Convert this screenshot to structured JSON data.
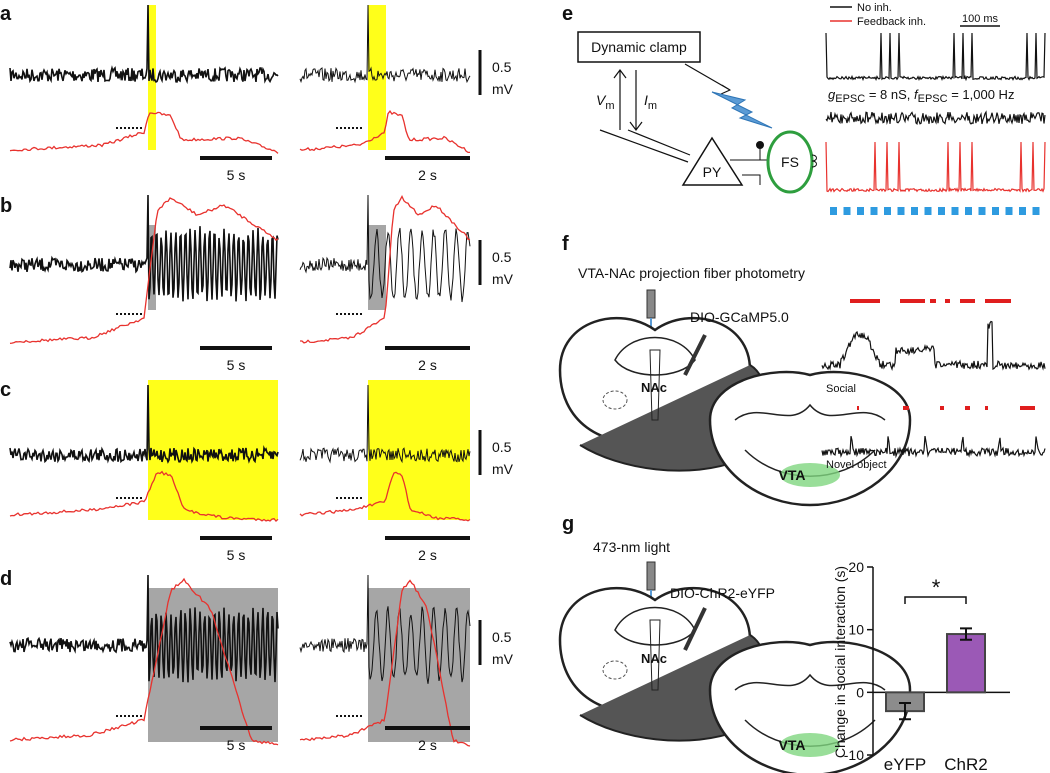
{
  "panel_labels": [
    "a",
    "b",
    "c",
    "d",
    "e",
    "f",
    "g"
  ],
  "scale_bars": {
    "voltage": "0.5",
    "voltage_unit": "mV",
    "time_left": "5 s",
    "time_right": "2 s"
  },
  "panel_e": {
    "box": "Dynamic clamp",
    "vm": "V",
    "vm_sub": "m",
    "im": "I",
    "im_sub": "m",
    "py": "PY",
    "fs": "FS",
    "legend": [
      "No inh.",
      "Feedback inh."
    ],
    "scale": "100 ms",
    "params": [
      "g",
      "EPSC",
      " = 8 nS, ",
      "f",
      "EPSC",
      " = 1,000 Hz"
    ]
  },
  "panel_f": {
    "title": "VTA-NAc projection fiber photometry",
    "virus": "DIO-GCaMP5.0",
    "nac": "NAc",
    "vta": "VTA",
    "social": "Social",
    "novel": "Novel object"
  },
  "panel_g": {
    "light": "473-nm light",
    "virus": "DIO-ChR2-eYFP",
    "nac": "NAc",
    "vta": "VTA"
  },
  "chart_data": {
    "type": "bar",
    "ylabel": "Change in social interaction (s)",
    "categories": [
      "eYFP",
      "ChR2"
    ],
    "values": [
      -3,
      9.3
    ],
    "errors": [
      1.3,
      0.9
    ],
    "colors": [
      "#8c8c8c",
      "#9b59b6"
    ],
    "ylim": [
      -10,
      20
    ],
    "yticks": [
      -10,
      0,
      10,
      20
    ],
    "annotation": "*"
  }
}
